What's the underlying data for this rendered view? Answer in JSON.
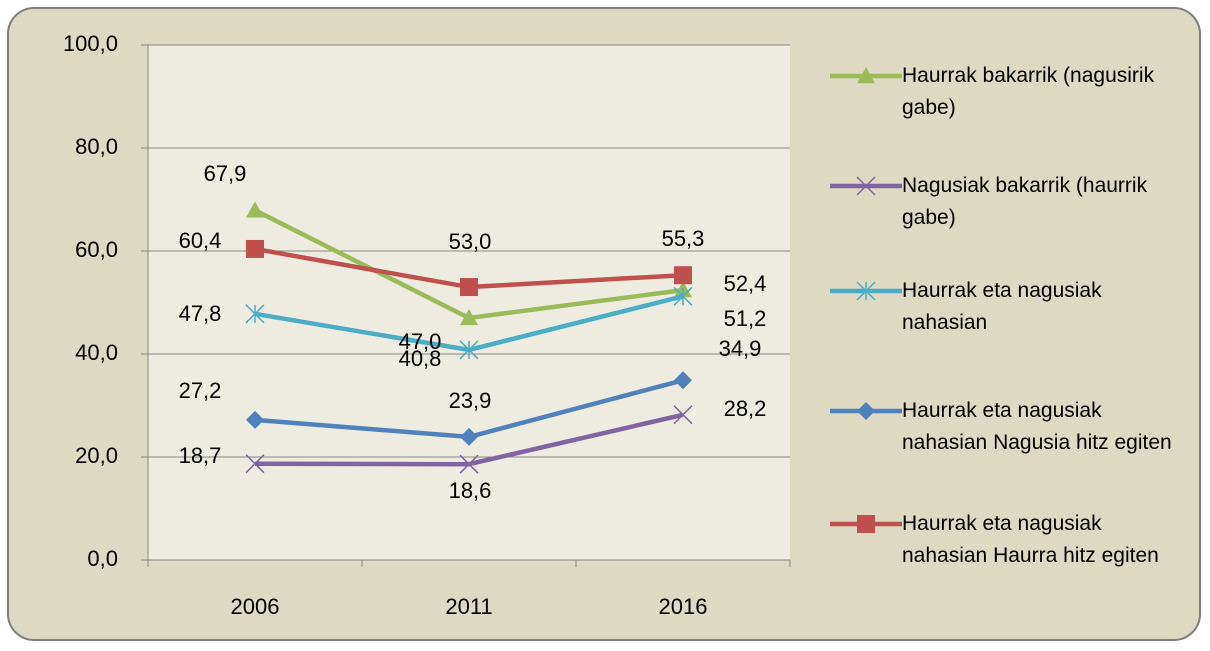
{
  "chart_data": {
    "type": "line",
    "categories": [
      "2006",
      "2011",
      "2016"
    ],
    "ylim": [
      0,
      100
    ],
    "yticks": [
      {
        "value": 0,
        "label": "0,0"
      },
      {
        "value": 20,
        "label": "20,0"
      },
      {
        "value": 40,
        "label": "40,0"
      },
      {
        "value": 60,
        "label": "60,0"
      },
      {
        "value": 80,
        "label": "80,0"
      },
      {
        "value": 100,
        "label": "100,0"
      }
    ],
    "grid": true,
    "legend": "right",
    "series": [
      {
        "name": "Haurrak bakarrik (nagusirik gabe)",
        "color": "#9bbb59",
        "marker": "triangle",
        "values": [
          67.9,
          47.0,
          52.4
        ],
        "value_labels": [
          "67,9",
          "47,0",
          "52,4"
        ]
      },
      {
        "name": "Nagusiak bakarrik (haurrik gabe)",
        "color": "#8064a2",
        "marker": "x",
        "values": [
          18.7,
          18.6,
          28.2
        ],
        "value_labels": [
          "18,7",
          "18,6",
          "28,2"
        ]
      },
      {
        "name": "Haurrak eta nagusiak nahasian",
        "color": "#4bacc6",
        "marker": "star",
        "values": [
          47.8,
          40.8,
          51.2
        ],
        "value_labels": [
          "47,8",
          "40,8",
          "51,2"
        ]
      },
      {
        "name": "Haurrak eta nagusiak nahasian Nagusia hitz egiten",
        "color": "#4f81bd",
        "marker": "diamond",
        "values": [
          27.2,
          23.9,
          34.9
        ],
        "value_labels": [
          "27,2",
          "23,9",
          "34,9"
        ]
      },
      {
        "name": "Haurrak eta nagusiak nahasian Haurra hitz egiten",
        "color": "#c0504d",
        "marker": "square",
        "values": [
          60.4,
          53.0,
          55.3
        ],
        "value_labels": [
          "60,4",
          "53,0",
          "55,3"
        ]
      }
    ]
  }
}
